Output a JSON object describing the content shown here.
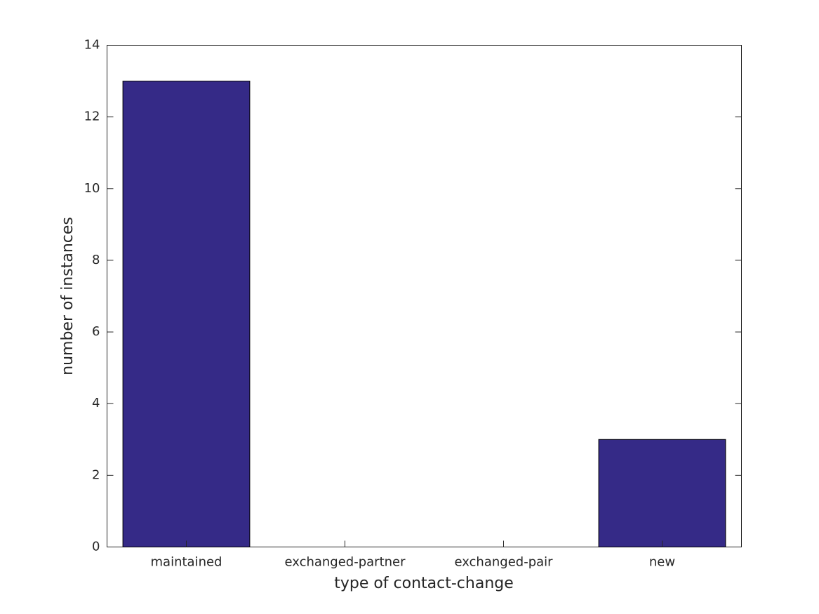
{
  "chart_data": {
    "type": "bar",
    "categories": [
      "maintained",
      "exchanged-partner",
      "exchanged-pair",
      "new"
    ],
    "values": [
      13,
      0,
      0,
      3
    ],
    "color": "#352a87",
    "xlabel": "type of contact-change",
    "ylabel": "number of instances",
    "ylim": [
      0,
      14
    ],
    "yticks": [
      0,
      2,
      4,
      6,
      8,
      10,
      12,
      14
    ]
  }
}
